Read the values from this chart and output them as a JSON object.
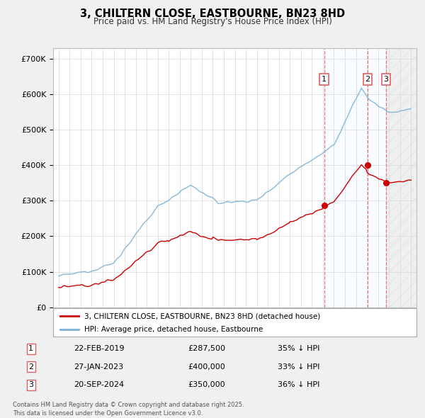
{
  "title": "3, CHILTERN CLOSE, EASTBOURNE, BN23 8HD",
  "subtitle": "Price paid vs. HM Land Registry's House Price Index (HPI)",
  "background_color": "#f0f0f0",
  "plot_bg_color": "#ffffff",
  "ylim": [
    0,
    730000
  ],
  "yticks": [
    0,
    100000,
    200000,
    300000,
    400000,
    500000,
    600000,
    700000
  ],
  "ytick_labels": [
    "£0",
    "£100K",
    "£200K",
    "£300K",
    "£400K",
    "£500K",
    "£600K",
    "£700K"
  ],
  "xlim_start": 1994.5,
  "xlim_end": 2027.5,
  "legend_line1": "3, CHILTERN CLOSE, EASTBOURNE, BN23 8HD (detached house)",
  "legend_line2": "HPI: Average price, detached house, Eastbourne",
  "sale1_date": "22-FEB-2019",
  "sale1_price": "£287,500",
  "sale1_pct": "35% ↓ HPI",
  "sale1_label": "1",
  "sale2_date": "27-JAN-2023",
  "sale2_price": "£400,000",
  "sale2_pct": "33% ↓ HPI",
  "sale2_label": "2",
  "sale3_date": "20-SEP-2024",
  "sale3_price": "£350,000",
  "sale3_pct": "36% ↓ HPI",
  "sale3_label": "3",
  "footer": "Contains HM Land Registry data © Crown copyright and database right 2025.\nThis data is licensed under the Open Government Licence v3.0.",
  "hpi_color": "#7ab3d4",
  "price_color": "#cc0000",
  "vline_color": "#e06060",
  "shade_color": "#ddeeff",
  "hatch_color": "#c8c8c8",
  "sale_years": [
    2019.12,
    2023.07,
    2024.72
  ],
  "sale_paid": [
    287500,
    400000,
    350000
  ],
  "sale_hpi_approx": [
    440000,
    600000,
    545000
  ]
}
